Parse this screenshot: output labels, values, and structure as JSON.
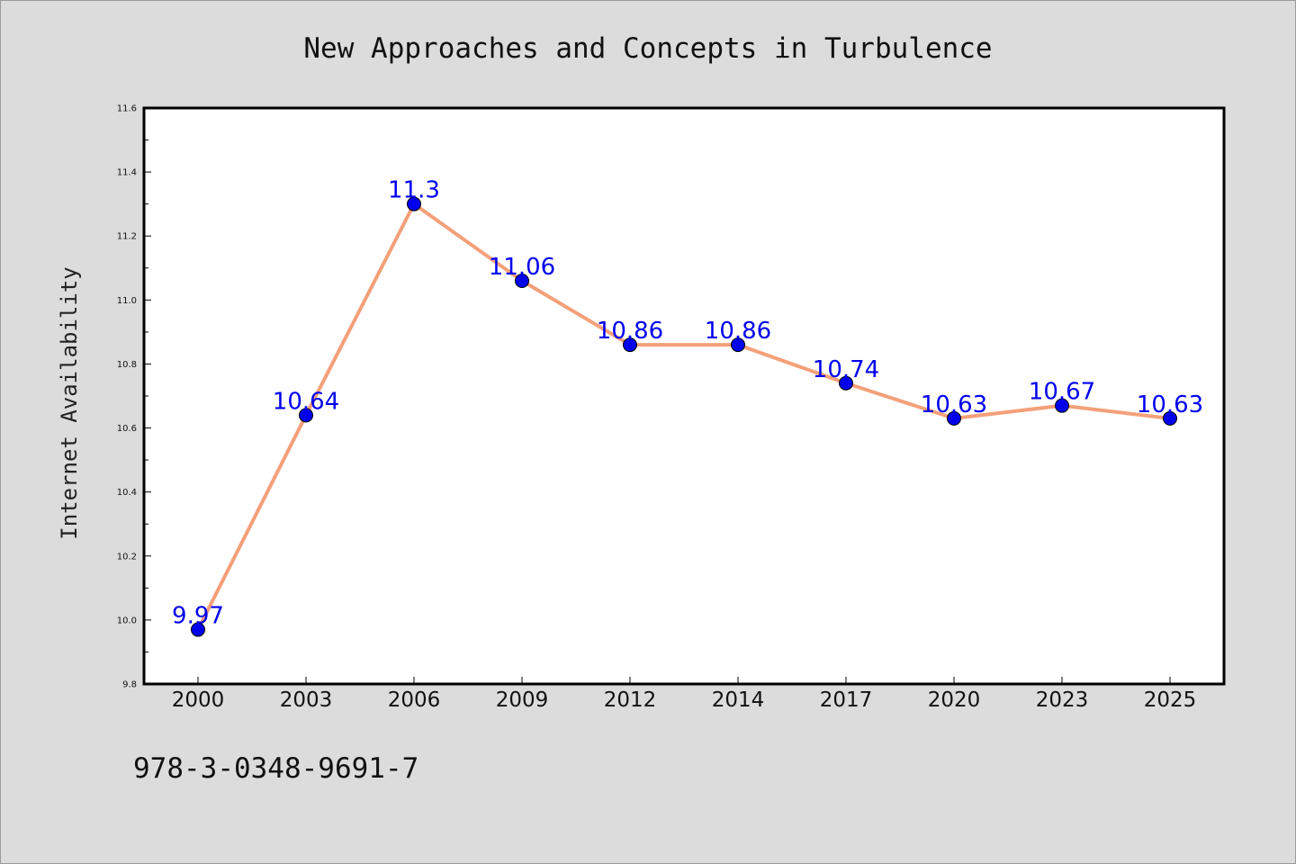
{
  "chart_data": {
    "type": "line",
    "title": "New Approaches and Concepts in Turbulence",
    "xlabel": "",
    "ylabel": "Internet Availability",
    "categories": [
      "2000",
      "2003",
      "2006",
      "2009",
      "2012",
      "2014",
      "2017",
      "2020",
      "2023",
      "2025"
    ],
    "series": [
      {
        "values": [
          9.97,
          10.64,
          11.3,
          11.06,
          10.86,
          10.86,
          10.74,
          10.63,
          10.67,
          10.63
        ],
        "data_labels": [
          "9.97",
          "10.64",
          "11.3",
          "11.06",
          "10.86",
          "10.86",
          "10.74",
          "10.63",
          "10.67",
          "10.63"
        ],
        "line_color": "#f4a07a",
        "marker_color": "#0000ee",
        "label_color": "#0000ee"
      }
    ],
    "ylim": [
      9.8,
      11.6
    ],
    "yticks": [
      "9.8",
      "10.0",
      "10.2",
      "10.4",
      "10.6",
      "10.8",
      "11.0",
      "11.2",
      "11.4",
      "11.6"
    ],
    "grid": false,
    "legend": "none",
    "background_color": "#dcdcdc",
    "plot_background_color": "#ffffff"
  },
  "footer": {
    "isbn": "978-3-0348-9691-7"
  }
}
